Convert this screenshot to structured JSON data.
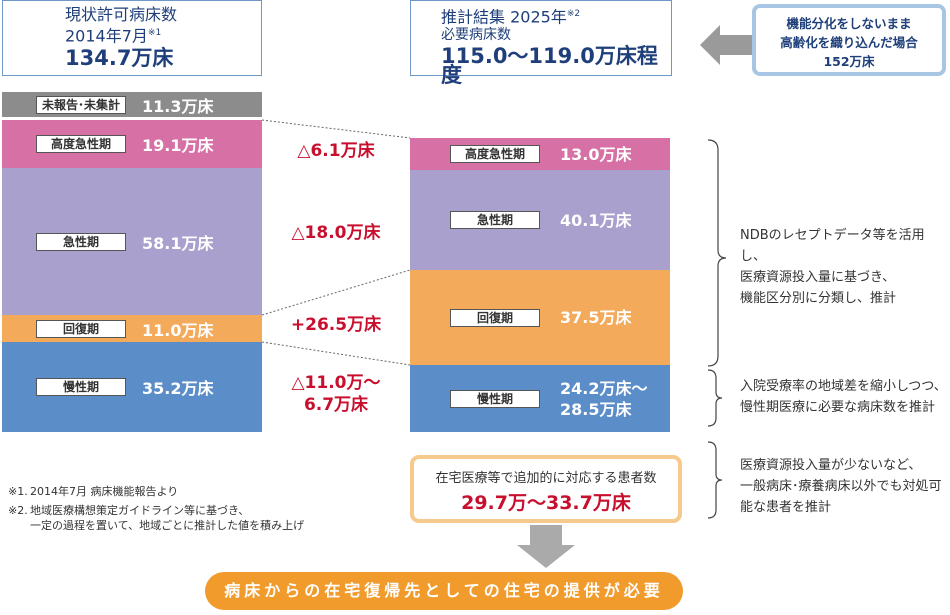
{
  "header": {
    "current": {
      "title": "現状許可病床数",
      "date": "2014年7月",
      "note": "※1",
      "total": "134.7万床"
    },
    "estimate": {
      "title": "推計結集 2025年",
      "note": "※2",
      "subtitle": "必要病床数",
      "total": "115.0〜119.0万床程度"
    },
    "callout": {
      "lines": [
        "機能分化をしないまま",
        "高齢化を織り込んだ場合",
        "152万床"
      ]
    }
  },
  "current_beds": [
    {
      "label": "未報告･未集計",
      "value": "11.3万床"
    },
    {
      "label": "高度急性期",
      "value": "19.1万床"
    },
    {
      "label": "急性期",
      "value": "58.1万床"
    },
    {
      "label": "回復期",
      "value": "11.0万床"
    },
    {
      "label": "慢性期",
      "value": "35.2万床"
    }
  ],
  "required_beds": [
    {
      "label": "高度急性期",
      "value": [
        "13.0万床"
      ]
    },
    {
      "label": "急性期",
      "value": [
        "40.1万床"
      ]
    },
    {
      "label": "回復期",
      "value": [
        "37.5万床"
      ]
    },
    {
      "label": "慢性期",
      "value": [
        "24.2万床〜",
        "28.5万床"
      ]
    }
  ],
  "changes": [
    [
      "△6.1万床"
    ],
    [
      "△18.0万床"
    ],
    [
      "+26.5万床"
    ],
    [
      "△11.0万〜",
      "6.7万床"
    ]
  ],
  "explanations": [
    [
      "NDBのレセプトデータ等を活用し、",
      "医療資源投入量に基づき、",
      "機能区分別に分類し、推計"
    ],
    [
      "入院受療率の地域差を縮小しつつ、",
      "慢性期医療に必要な病床数を推計"
    ],
    [
      "医療資源投入量が少ないなど、",
      "一般病床･療養病床以外でも対処可",
      "能な患者を推計"
    ]
  ],
  "notes": [
    [
      "※1.",
      "2014年7月 病床機能報告より"
    ],
    [
      "※2.",
      "地域医療構想策定ガイドライン等に基づき、",
      "一定の過程を置いて、地域ごとに推計した値を積み上げ"
    ]
  ],
  "home_care": {
    "title": "在宅医療等で追加的に対応する患者数",
    "value": "29.7万〜33.7万床"
  },
  "conclusion": "病床からの在宅復帰先としての住宅の提供が必要"
}
